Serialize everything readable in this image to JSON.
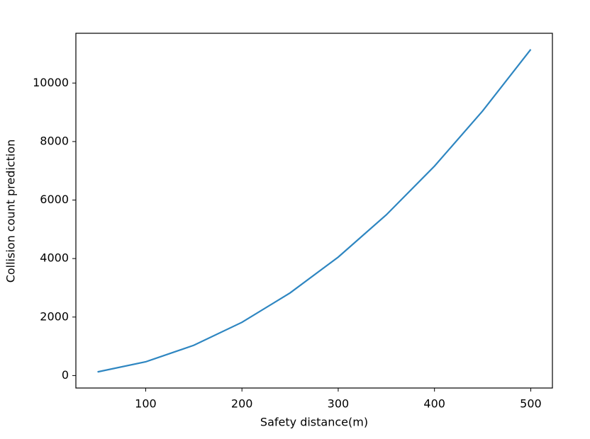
{
  "chart_data": {
    "type": "line",
    "x_label": "Safety distance(m)",
    "y_label": "Collision count prediction",
    "x": [
      50,
      100,
      150,
      200,
      250,
      300,
      350,
      400,
      450,
      500
    ],
    "series": [
      {
        "name": "Collision count prediction",
        "color": "#2e86c1",
        "values": [
          125,
          470,
          1035,
          1820,
          2825,
          4050,
          5495,
          7160,
          9045,
          11150
        ]
      }
    ],
    "xlim": [
      27.5,
      522.5
    ],
    "ylim": [
      -426,
      11701
    ],
    "xticks": [
      100,
      200,
      300,
      400,
      500
    ],
    "yticks": [
      0,
      2000,
      4000,
      6000,
      8000,
      10000
    ],
    "grid": false
  }
}
